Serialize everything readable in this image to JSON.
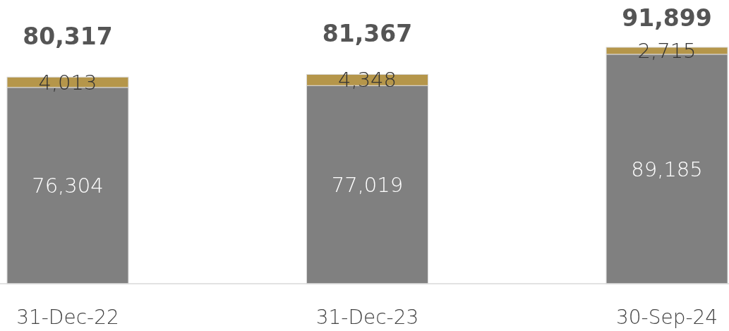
{
  "chart_data": {
    "type": "bar",
    "stacked": true,
    "categories": [
      "31-Dec-22",
      "31-Dec-23",
      "30-Sep-24"
    ],
    "series": [
      {
        "color": "#808080",
        "values": [
          76304,
          77019,
          89185
        ],
        "value_labels": [
          "76,304",
          "77,019",
          "89,185"
        ]
      },
      {
        "color": "#b5964a",
        "values": [
          4013,
          4348,
          2715
        ],
        "value_labels": [
          "4,013",
          "4,348",
          "2,715"
        ]
      }
    ],
    "totals": [
      "80,317",
      "81,367",
      "91,899"
    ]
  }
}
